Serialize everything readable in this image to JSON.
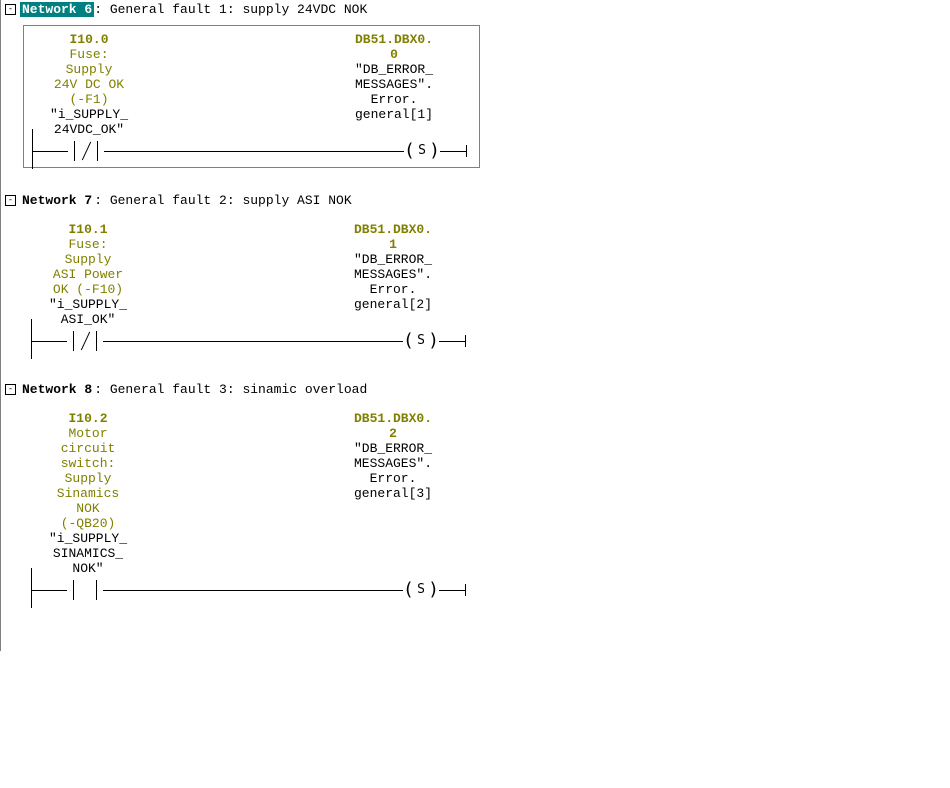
{
  "colors": {
    "accent": "#008080",
    "olive": "#808000",
    "border": "#808080"
  },
  "networks": [
    {
      "selected": true,
      "bordered": true,
      "label": "Network 6",
      "title": ": General fault 1: supply 24VDC NOK",
      "contact_type": "nc",
      "input": {
        "address": "I10.0",
        "comment_lines": [
          "Fuse:",
          "Supply",
          "24V DC OK",
          "(-F1)"
        ],
        "symbol_lines": [
          "\"i_SUPPLY_",
          "24VDC_OK\""
        ]
      },
      "output": {
        "address_lines": [
          "DB51.DBX0.",
          "0"
        ],
        "symbol_lines": [
          "\"DB_ERROR_",
          "MESSAGES\".",
          "Error.",
          "general[1]"
        ],
        "coil_type": "S"
      }
    },
    {
      "selected": false,
      "bordered": false,
      "label": "Network 7",
      "title": ": General fault 2: supply ASI NOK",
      "contact_type": "nc",
      "input": {
        "address": "I10.1",
        "comment_lines": [
          "Fuse:",
          "Supply",
          "ASI Power",
          "OK (-F10)"
        ],
        "symbol_lines": [
          "\"i_SUPPLY_",
          "ASI_OK\""
        ]
      },
      "output": {
        "address_lines": [
          "DB51.DBX0.",
          "1"
        ],
        "symbol_lines": [
          "\"DB_ERROR_",
          "MESSAGES\".",
          "Error.",
          "general[2]"
        ],
        "coil_type": "S"
      }
    },
    {
      "selected": false,
      "bordered": false,
      "label": "Network 8",
      "title": ": General fault 3: sinamic overload",
      "contact_type": "no",
      "input": {
        "address": "I10.2",
        "comment_lines": [
          "Motor",
          "circuit",
          "switch:",
          "Supply",
          "Sinamics",
          "NOK",
          "(-QB20)"
        ],
        "symbol_lines": [
          "\"i_SUPPLY_",
          "SINAMICS_",
          "NOK\""
        ]
      },
      "output": {
        "address_lines": [
          "DB51.DBX0.",
          "2"
        ],
        "symbol_lines": [
          "\"DB_ERROR_",
          "MESSAGES\".",
          "Error.",
          "general[3]"
        ],
        "coil_type": "S"
      }
    }
  ]
}
